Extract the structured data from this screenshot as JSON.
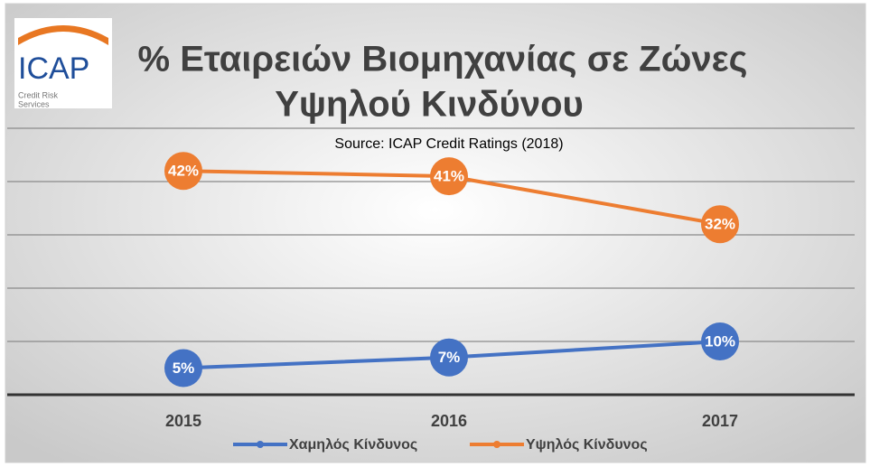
{
  "logo": {
    "name": "ICAP",
    "line1": "Credit Risk",
    "line2": "Services"
  },
  "chart_data": {
    "type": "line",
    "title": [
      "% Εταιρειών Βιομηχανίας σε Ζώνες",
      "Υψηλού Κινδύνου"
    ],
    "subtitle": "Source: ICAP Credit Ratings (2018)",
    "categories": [
      "2015",
      "2016",
      "2017"
    ],
    "series": [
      {
        "name": "Χαμηλός Κίνδυνος",
        "color": "#4472c4",
        "values": [
          5,
          7,
          10
        ],
        "value_labels": [
          "5%",
          "7%",
          "10%"
        ]
      },
      {
        "name": "Υψηλός Κίνδυνος",
        "color": "#ed7d31",
        "values": [
          42,
          41,
          32
        ],
        "value_labels": [
          "42%",
          "41%",
          "32%"
        ]
      }
    ],
    "ylim": [
      0,
      50
    ],
    "yticks": [
      0,
      10,
      20,
      30,
      40,
      50
    ],
    "grid": true,
    "legend": "bottom"
  }
}
